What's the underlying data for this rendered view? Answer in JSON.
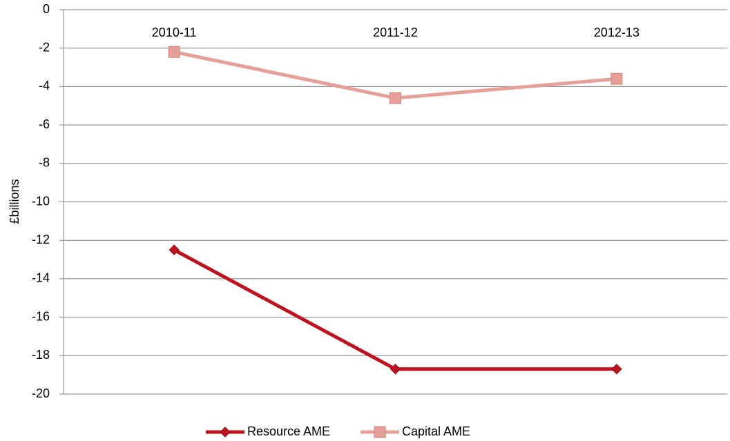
{
  "chart_data": {
    "type": "line",
    "y_label": "£billions",
    "categories": [
      "2010-11",
      "2011-12",
      "2012-13"
    ],
    "series": [
      {
        "name": "Resource AME",
        "color": "#c0111f",
        "marker": "diamond",
        "values": [
          -12.5,
          -18.7,
          -18.7
        ]
      },
      {
        "name": "Capital AME",
        "color": "#e6a09a",
        "marker": "square",
        "values": [
          -2.2,
          -4.6,
          -3.6
        ]
      }
    ],
    "ylim": [
      -20,
      0
    ],
    "yticks": [
      0,
      -2,
      -4,
      -6,
      -8,
      -10,
      -12,
      -14,
      -16,
      -18,
      -20
    ],
    "grid": true,
    "legend": "bottom"
  }
}
